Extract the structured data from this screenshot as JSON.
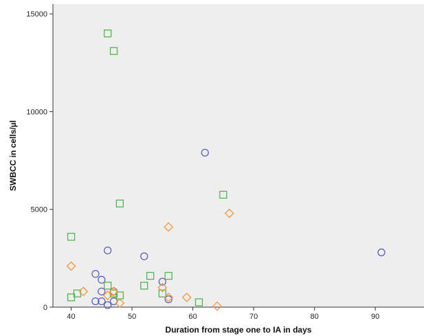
{
  "chart_data": {
    "type": "scatter",
    "title": "",
    "xlabel": "Duration from stage one to IA in days",
    "ylabel": "SWBCC in cells/µl",
    "xlim": [
      37,
      98
    ],
    "ylim": [
      0,
      15500
    ],
    "x_ticks": [
      40,
      50,
      60,
      70,
      80,
      90
    ],
    "y_ticks": [
      0,
      5000,
      10000,
      15000
    ],
    "x_tick_labels": [
      "40",
      "50",
      "60",
      "70",
      "80",
      "90"
    ],
    "y_tick_labels": [
      "0",
      "5000",
      "10000",
      "15000"
    ],
    "grid": false,
    "legend": "none",
    "background_color": "#eeeeee",
    "series": [
      {
        "marker": "circle",
        "color": "#5b62b8",
        "points": [
          [
            46,
            2900
          ],
          [
            44,
            1700
          ],
          [
            45,
            1400
          ],
          [
            45,
            800
          ],
          [
            47,
            800
          ],
          [
            44,
            300
          ],
          [
            45,
            300
          ],
          [
            47,
            300
          ],
          [
            46,
            100
          ],
          [
            52,
            2600
          ],
          [
            55,
            1300
          ],
          [
            56,
            400
          ],
          [
            62,
            7900
          ],
          [
            91,
            2800
          ]
        ]
      },
      {
        "marker": "square",
        "color": "#52b552",
        "points": [
          [
            46,
            14000
          ],
          [
            47,
            13100
          ],
          [
            48,
            5300
          ],
          [
            65,
            5750
          ],
          [
            40,
            3600
          ],
          [
            41,
            700
          ],
          [
            40,
            500
          ],
          [
            46,
            1100
          ],
          [
            47,
            700
          ],
          [
            48,
            600
          ],
          [
            52,
            1100
          ],
          [
            53,
            1600
          ],
          [
            55,
            700
          ],
          [
            56,
            1600
          ],
          [
            61,
            250
          ]
        ]
      },
      {
        "marker": "diamond",
        "color": "#f0963c",
        "points": [
          [
            40,
            2100
          ],
          [
            42,
            800
          ],
          [
            46,
            600
          ],
          [
            47,
            800
          ],
          [
            48,
            200
          ],
          [
            55,
            1000
          ],
          [
            56,
            500
          ],
          [
            56,
            4100
          ],
          [
            59,
            500
          ],
          [
            64,
            50
          ],
          [
            66,
            4800
          ]
        ]
      }
    ]
  }
}
